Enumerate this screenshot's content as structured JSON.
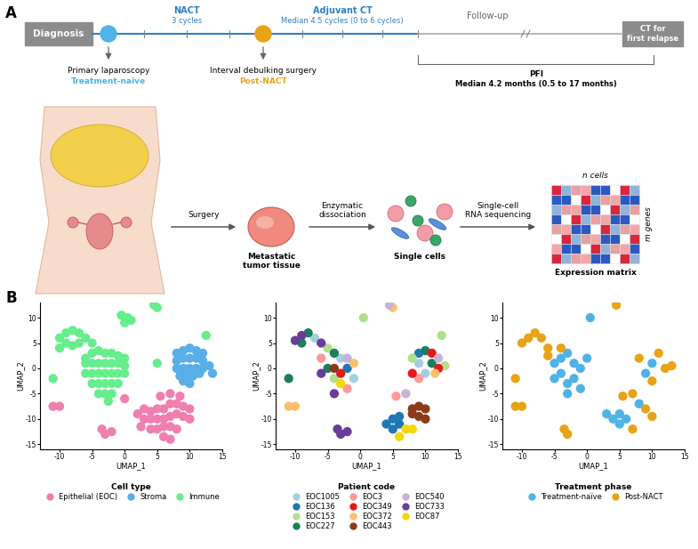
{
  "diagram": {
    "panel_a": {
      "label": "A",
      "timeline": {
        "start": "Diagnosis",
        "end": "CT for\nfirst relapse",
        "phases": [
          {
            "title": "NACT",
            "detail": "3 cycles"
          },
          {
            "title": "Adjuvant CT",
            "detail": "Median 4.5 cycles (0 to 6 cycles)"
          },
          {
            "title": "Follow-up"
          }
        ],
        "events": [
          {
            "label": "Primary laparoscopy",
            "phase": "Treatment-naïve",
            "color": "#4fb3e8"
          },
          {
            "label": "Interval debulking surgery",
            "phase": "Post-NACT",
            "color": "#e8a317"
          }
        ],
        "pfi": {
          "label": "PFI",
          "detail": "Median 4.2 months (0.5 to 17 months)"
        }
      },
      "workflow": {
        "steps": [
          "Surgery",
          "Enzymatic\ndissociation",
          "Single-cell\nRNA sequencing"
        ],
        "nodes": [
          "Metastatic\ntumor tissue",
          "Single cells",
          "Expression matrix"
        ],
        "matrix_labels": [
          "n cells",
          "m genes"
        ]
      }
    },
    "panel_b": {
      "label": "B"
    }
  },
  "chart_data": [
    {
      "type": "scatter",
      "x_label": "UMAP_1",
      "y_label": "UMAP_2",
      "xlim": [
        -13,
        15
      ],
      "xticks": [
        -10,
        -5,
        0,
        5,
        10,
        15
      ],
      "ylim": [
        -16,
        13
      ],
      "yticks": [
        -15,
        -10,
        -5,
        0,
        5,
        10
      ],
      "legend": "upper center",
      "legend_title": "Cell type",
      "series": [
        {
          "name": "Epithelial (EOC)",
          "color": "#f07fb0",
          "points": [
            [
              2,
              -9
            ],
            [
              3,
              -8
            ],
            [
              4,
              -8.5
            ],
            [
              5,
              -8
            ],
            [
              6,
              -8
            ],
            [
              7,
              -7
            ],
            [
              8,
              -7
            ],
            [
              9,
              -7.5
            ],
            [
              10,
              -8
            ],
            [
              3,
              -10
            ],
            [
              4,
              -10
            ],
            [
              5,
              -10
            ],
            [
              6,
              -10
            ],
            [
              7,
              -9.5
            ],
            [
              8,
              -9
            ],
            [
              9,
              -9.5
            ],
            [
              10,
              -10
            ],
            [
              4,
              -12
            ],
            [
              5,
              -12
            ],
            [
              6,
              -11.5
            ],
            [
              7,
              -11.5
            ],
            [
              8,
              -12
            ],
            [
              6,
              -13.5
            ],
            [
              7,
              -14
            ],
            [
              5.5,
              -5.5
            ],
            [
              7,
              -5
            ],
            [
              8.5,
              -5.5
            ],
            [
              -3.5,
              -12
            ],
            [
              -3,
              -13
            ],
            [
              -2,
              -12.5
            ],
            [
              -11,
              -7.5
            ],
            [
              -10,
              -7.5
            ],
            [
              0,
              -6
            ],
            [
              2.5,
              -11.5
            ]
          ]
        },
        {
          "name": "Stroma",
          "color": "#5aaee8",
          "points": [
            [
              8,
              3
            ],
            [
              9,
              3.5
            ],
            [
              10,
              4
            ],
            [
              11,
              3.5
            ],
            [
              12,
              3
            ],
            [
              8,
              1.5
            ],
            [
              9,
              2
            ],
            [
              10,
              2
            ],
            [
              11,
              2
            ],
            [
              12,
              1.5
            ],
            [
              8,
              0
            ],
            [
              9,
              0
            ],
            [
              10,
              0
            ],
            [
              11,
              0
            ],
            [
              12,
              0
            ],
            [
              13,
              0.5
            ],
            [
              8.5,
              -1.5
            ],
            [
              9.5,
              -1.5
            ],
            [
              10.5,
              -1.5
            ],
            [
              11.5,
              -1
            ],
            [
              9,
              -2.5
            ],
            [
              10,
              -3
            ],
            [
              13.5,
              -1
            ]
          ]
        },
        {
          "name": "Immune",
          "color": "#66ee8c",
          "points": [
            [
              -6,
              2
            ],
            [
              -5,
              3
            ],
            [
              -4,
              3.5
            ],
            [
              -3,
              3
            ],
            [
              -2,
              3
            ],
            [
              -1,
              2.5
            ],
            [
              0,
              2
            ],
            [
              -6,
              1
            ],
            [
              -5,
              1
            ],
            [
              -4,
              1
            ],
            [
              -3,
              1
            ],
            [
              -2,
              1
            ],
            [
              -1,
              1
            ],
            [
              0,
              0.5
            ],
            [
              -6,
              -1
            ],
            [
              -5,
              -1
            ],
            [
              -4,
              -1
            ],
            [
              -3,
              -1
            ],
            [
              -2,
              -1
            ],
            [
              -1,
              -1
            ],
            [
              0,
              -1
            ],
            [
              -5,
              -3
            ],
            [
              -4,
              -3
            ],
            [
              -3,
              -3
            ],
            [
              -2,
              -3
            ],
            [
              -1,
              -3
            ],
            [
              -4,
              -5
            ],
            [
              -3,
              -5
            ],
            [
              -2,
              -5
            ],
            [
              -2.5,
              -6.5
            ],
            [
              -10,
              6
            ],
            [
              -9,
              7
            ],
            [
              -8,
              7.5
            ],
            [
              -7,
              7
            ],
            [
              -6,
              6
            ],
            [
              -5,
              5
            ],
            [
              -9,
              5
            ],
            [
              -8,
              4.5
            ],
            [
              -10,
              4
            ],
            [
              -7,
              5
            ],
            [
              -0.5,
              10.5
            ],
            [
              0.5,
              10
            ],
            [
              1,
              9.5
            ],
            [
              0,
              9
            ],
            [
              4.5,
              12.5
            ],
            [
              5,
              12
            ],
            [
              -11,
              -2
            ],
            [
              5,
              1
            ],
            [
              12.5,
              6.5
            ]
          ]
        }
      ]
    },
    {
      "type": "scatter",
      "x_label": "UMAP_1",
      "y_label": "UMAP_2",
      "xlim": [
        -13,
        15
      ],
      "xticks": [
        -10,
        -5,
        0,
        5,
        10,
        15
      ],
      "ylim": [
        -16,
        13
      ],
      "yticks": [
        -15,
        -10,
        -5,
        0,
        5,
        10
      ],
      "legend": "upper center",
      "legend_title": "Patient code",
      "series": [
        {
          "name": "EOC1005",
          "color": "#a6cee3",
          "points": [
            [
              -3,
              2
            ],
            [
              -1,
              -2
            ],
            [
              -7,
              6
            ],
            [
              9,
              1
            ],
            [
              10,
              -1
            ]
          ]
        },
        {
          "name": "EOC136",
          "color": "#1f78b4",
          "points": [
            [
              5,
              -10
            ],
            [
              6,
              -11
            ],
            [
              4,
              -11
            ],
            [
              5,
              -12
            ],
            [
              6,
              -9.5
            ],
            [
              -2,
              0
            ],
            [
              9,
              3
            ]
          ]
        },
        {
          "name": "EOC153",
          "color": "#b2df8a",
          "points": [
            [
              -4,
              -2
            ],
            [
              -5,
              4
            ],
            [
              0.5,
              10
            ],
            [
              8,
              2
            ],
            [
              13,
              0.5
            ],
            [
              12.5,
              6.5
            ]
          ]
        },
        {
          "name": "EOC227",
          "color": "#1b7f5a",
          "points": [
            [
              -5,
              0
            ],
            [
              -8,
              7
            ],
            [
              -9,
              5
            ],
            [
              -4,
              3
            ],
            [
              11,
              1
            ],
            [
              -11,
              -2
            ],
            [
              10,
              3.5
            ]
          ]
        },
        {
          "name": "EOC3",
          "color": "#fb9a99",
          "points": [
            [
              -2,
              -4
            ],
            [
              -6,
              2
            ],
            [
              5.5,
              -5.5
            ],
            [
              9,
              -2
            ]
          ]
        },
        {
          "name": "EOC349",
          "color": "#e31a1c",
          "points": [
            [
              -3,
              -1
            ],
            [
              11,
              3
            ],
            [
              8,
              -1
            ],
            [
              12,
              0
            ]
          ]
        },
        {
          "name": "EOC372",
          "color": "#fdbf6f",
          "points": [
            [
              -11,
              -7.5
            ],
            [
              -10,
              -7.5
            ],
            [
              -1,
              1
            ],
            [
              5,
              12
            ],
            [
              11.5,
              -1
            ]
          ]
        },
        {
          "name": "EOC443",
          "color": "#8b3a1a",
          "points": [
            [
              8,
              -8
            ],
            [
              9,
              -7.5
            ],
            [
              10,
              -8
            ],
            [
              9,
              -9.5
            ],
            [
              10,
              -10
            ],
            [
              8,
              -9
            ],
            [
              -4,
              0
            ]
          ]
        },
        {
          "name": "EOC540",
          "color": "#cab2d6",
          "points": [
            [
              4.5,
              12.5
            ],
            [
              7,
              -5
            ],
            [
              -2,
              2
            ],
            [
              12,
              2
            ]
          ]
        },
        {
          "name": "EOC733",
          "color": "#6a3d9a",
          "points": [
            [
              -3.5,
              -12
            ],
            [
              -3,
              -13
            ],
            [
              -2,
              -12.5
            ],
            [
              -9,
              6.5
            ],
            [
              -10,
              5.5
            ],
            [
              -6,
              5
            ],
            [
              -4,
              -5
            ],
            [
              -6,
              -1
            ]
          ]
        },
        {
          "name": "EOC87",
          "color": "#f5d800",
          "points": [
            [
              7,
              -12
            ],
            [
              8,
              -12
            ],
            [
              -3,
              -3
            ],
            [
              6,
              -13.5
            ]
          ]
        }
      ]
    },
    {
      "type": "scatter",
      "x_label": "UMAP_1",
      "y_label": "UMAP_2",
      "xlim": [
        -13,
        15
      ],
      "xticks": [
        -10,
        -5,
        0,
        5,
        10,
        15
      ],
      "ylim": [
        -16,
        13
      ],
      "yticks": [
        -15,
        -10,
        -5,
        0,
        5,
        10
      ],
      "legend": "upper center",
      "legend_title": "Treatment phase",
      "series": [
        {
          "name": "Treatment-naïve",
          "color": "#4fb3e8",
          "points": [
            [
              -5,
              1
            ],
            [
              -4,
              2
            ],
            [
              -3,
              3
            ],
            [
              -2,
              1
            ],
            [
              -1,
              0
            ],
            [
              -4,
              -1
            ],
            [
              -3,
              -3
            ],
            [
              -2,
              -2
            ],
            [
              -1,
              -4
            ],
            [
              -3,
              -5
            ],
            [
              -5,
              -2
            ],
            [
              0,
              2
            ],
            [
              4,
              -10
            ],
            [
              5,
              -11
            ],
            [
              6,
              -10
            ],
            [
              5,
              -9
            ],
            [
              3,
              -9
            ],
            [
              8,
              -7
            ],
            [
              9,
              -1
            ],
            [
              10,
              1
            ],
            [
              0.5,
              10
            ]
          ]
        },
        {
          "name": "Post-NACT",
          "color": "#e8a317",
          "points": [
            [
              -9,
              6
            ],
            [
              -8,
              7
            ],
            [
              -7,
              6
            ],
            [
              -10,
              5
            ],
            [
              -6,
              4
            ],
            [
              -6,
              2.5
            ],
            [
              -4,
              4
            ],
            [
              -3,
              -13
            ],
            [
              -3.5,
              -12
            ],
            [
              -11,
              -7.5
            ],
            [
              -10,
              -7.5
            ],
            [
              9,
              -8
            ],
            [
              10,
              -9.5
            ],
            [
              7,
              -12
            ],
            [
              11,
              3
            ],
            [
              12,
              0
            ],
            [
              8,
              2
            ],
            [
              10,
              -2.5
            ],
            [
              4.5,
              12.5
            ],
            [
              13,
              0.5
            ],
            [
              7,
              -5
            ],
            [
              5.5,
              -5.5
            ],
            [
              -11,
              -2
            ]
          ]
        }
      ]
    }
  ]
}
